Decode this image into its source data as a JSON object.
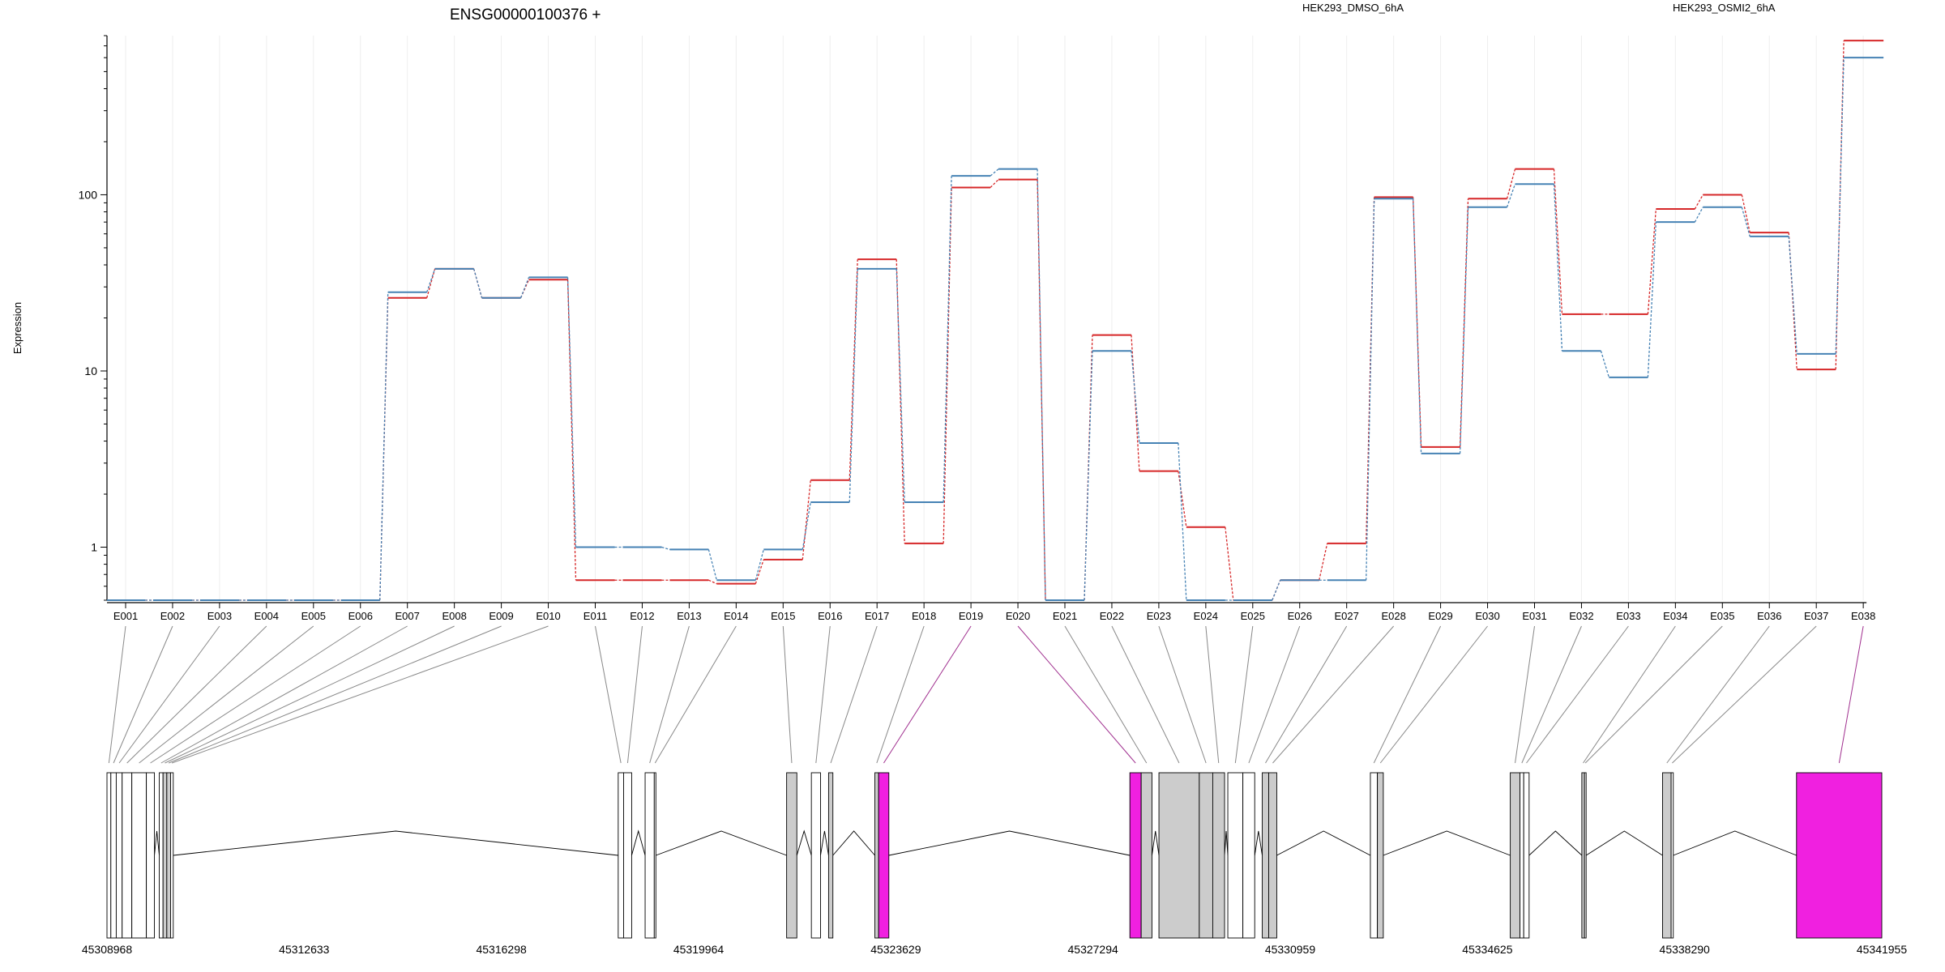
{
  "chart_data": {
    "type": "line",
    "title": "ENSG00000100376 +",
    "ylabel": "Expression",
    "xlabel": "",
    "y_scale": "log",
    "y_ticks": [
      1,
      10,
      100
    ],
    "ylim": [
      0.5,
      800
    ],
    "legend_placement": "top-right",
    "grid": "vertical-light",
    "categories": [
      "E001",
      "E002",
      "E003",
      "E004",
      "E005",
      "E006",
      "E007",
      "E008",
      "E009",
      "E010",
      "E011",
      "E012",
      "E013",
      "E014",
      "E015",
      "E016",
      "E017",
      "E018",
      "E019",
      "E020",
      "E021",
      "E022",
      "E023",
      "E024",
      "E025",
      "E026",
      "E027",
      "E028",
      "E029",
      "E030",
      "E031",
      "E032",
      "E033",
      "E034",
      "E035",
      "E036",
      "E037",
      "E038"
    ],
    "series": [
      {
        "name": "HEK293_DMSO_6hA",
        "color": "#d62728",
        "values": [
          0.5,
          0.5,
          0.5,
          0.5,
          0.5,
          0.5,
          26,
          38,
          26,
          33,
          0.65,
          0.65,
          0.65,
          0.62,
          0.85,
          2.4,
          43,
          1.05,
          110,
          122,
          0.5,
          16,
          2.7,
          1.3,
          0.5,
          0.65,
          1.05,
          97,
          3.7,
          95,
          140,
          21,
          21,
          83,
          100,
          61,
          10.2,
          750
        ]
      },
      {
        "name": "HEK293_OSMI2_6hA",
        "color": "#4682b4",
        "values": [
          0.5,
          0.5,
          0.5,
          0.5,
          0.5,
          0.5,
          28,
          38,
          26,
          34,
          1.0,
          1.0,
          0.97,
          0.65,
          0.97,
          1.8,
          38,
          1.8,
          128,
          140,
          0.5,
          13,
          3.9,
          0.5,
          0.5,
          0.65,
          0.65,
          95,
          3.4,
          85,
          115,
          13,
          9.2,
          70,
          85,
          58,
          12.5,
          600
        ]
      }
    ],
    "gene_model": {
      "coord_ticks": [
        "45308968",
        "45312633",
        "45316298",
        "45319964",
        "45323629",
        "45327294",
        "45330959",
        "45334625",
        "45338290",
        "45341955"
      ],
      "coord_range": [
        45308968,
        45341955
      ],
      "highlight_exons": [
        "E019",
        "E020",
        "E038"
      ],
      "highlight_color": "#f020e0",
      "exon_fill": "#cccccc",
      "exons": [
        {
          "id": "E001",
          "start": 45308968,
          "end": 45309040
        },
        {
          "id": "E002",
          "start": 45309040,
          "end": 45309140
        },
        {
          "id": "E003",
          "start": 45309140,
          "end": 45309250
        },
        {
          "id": "E004",
          "start": 45309250,
          "end": 45309430
        },
        {
          "id": "E005",
          "start": 45309430,
          "end": 45309700
        },
        {
          "id": "E006",
          "start": 45309700,
          "end": 45309850
        },
        {
          "id": "E007",
          "start": 45309940,
          "end": 45310010
        },
        {
          "id": "E008",
          "start": 45310010,
          "end": 45310080
        },
        {
          "id": "E009",
          "start": 45310080,
          "end": 45310150
        },
        {
          "id": "E010",
          "start": 45310150,
          "end": 45310200
        },
        {
          "id": "E011",
          "start": 45318470,
          "end": 45318570
        },
        {
          "id": "E012",
          "start": 45318570,
          "end": 45318720
        },
        {
          "id": "E013",
          "start": 45318970,
          "end": 45319140
        },
        {
          "id": "E014",
          "start": 45319140,
          "end": 45319170
        },
        {
          "id": "E015",
          "start": 45321600,
          "end": 45321790
        },
        {
          "id": "E016",
          "start": 45322060,
          "end": 45322230
        },
        {
          "id": "E017",
          "start": 45322380,
          "end": 45322460
        },
        {
          "id": "E018",
          "start": 45323240,
          "end": 45323310
        },
        {
          "id": "E019",
          "start": 45323310,
          "end": 45323500
        },
        {
          "id": "E020",
          "start": 45327980,
          "end": 45328190
        },
        {
          "id": "E021",
          "start": 45328190,
          "end": 45328390
        },
        {
          "id": "E022",
          "start": 45328520,
          "end": 45329270
        },
        {
          "id": "E023",
          "start": 45329270,
          "end": 45329520
        },
        {
          "id": "E024",
          "start": 45329520,
          "end": 45329740
        },
        {
          "id": "E025",
          "start": 45329800,
          "end": 45330080
        },
        {
          "id": "E026",
          "start": 45330080,
          "end": 45330300
        },
        {
          "id": "E027",
          "start": 45330440,
          "end": 45330560
        },
        {
          "id": "E028",
          "start": 45330560,
          "end": 45330710
        },
        {
          "id": "E029",
          "start": 45332450,
          "end": 45332580
        },
        {
          "id": "E030",
          "start": 45332580,
          "end": 45332690
        },
        {
          "id": "E031",
          "start": 45335050,
          "end": 45335230
        },
        {
          "id": "E032",
          "start": 45335230,
          "end": 45335300
        },
        {
          "id": "E033",
          "start": 45335300,
          "end": 45335400
        },
        {
          "id": "E034",
          "start": 45336380,
          "end": 45336430
        },
        {
          "id": "E035",
          "start": 45336430,
          "end": 45336460
        },
        {
          "id": "E036",
          "start": 45337880,
          "end": 45338040
        },
        {
          "id": "E037",
          "start": 45338040,
          "end": 45338080
        },
        {
          "id": "E038",
          "start": 45340370,
          "end": 45341955
        }
      ]
    }
  }
}
